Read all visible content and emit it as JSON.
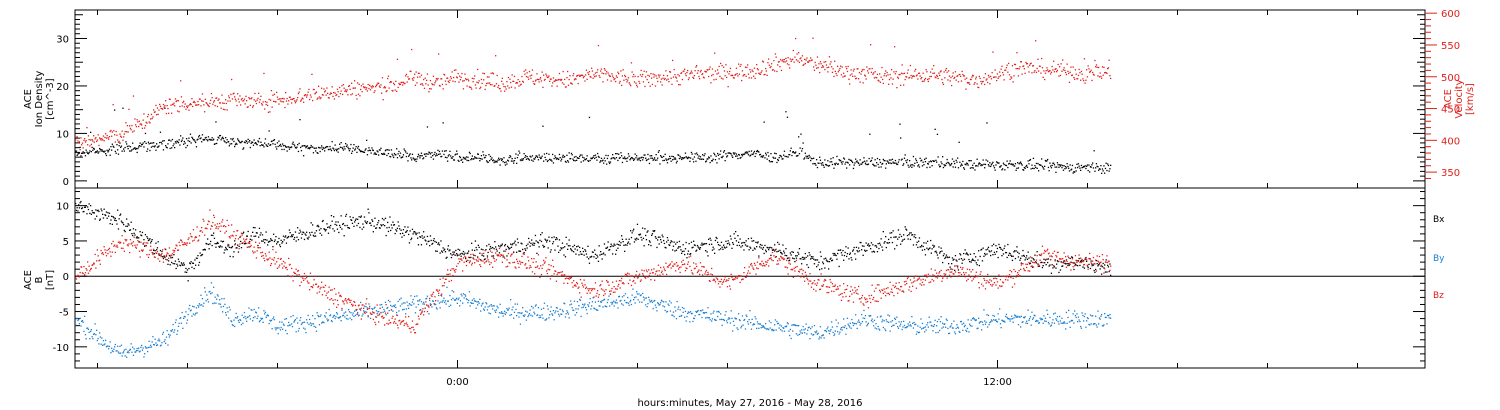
{
  "colors": {
    "black": "#000000",
    "red": "#e0201b",
    "blue": "#1b7fd0"
  },
  "x_axis": {
    "label": "hours:minutes, May 27, 2016 - May 28, 2016",
    "tick_labels": [
      "0:00",
      "12:00"
    ]
  },
  "chart_data": [
    {
      "type": "scatter",
      "panel": "plasma",
      "left_axis_label": [
        "ACE",
        "Ion Density",
        "[cm^-3]"
      ],
      "right_axis_label": [
        "ACE",
        "Velocity",
        "[km/s]"
      ],
      "x_unit": "hours relative to 2016-05-27 00:00 UT",
      "x_range": [
        -8.5,
        21.5
      ],
      "left_ylim": [
        -1.5,
        36
      ],
      "left_ticks": [
        0,
        10,
        20,
        30
      ],
      "right_ylim": [
        325,
        605
      ],
      "right_ticks": [
        350,
        400,
        450,
        500,
        550,
        600
      ],
      "grid": false,
      "series": [
        {
          "name": "Ion Density",
          "color": "black",
          "axis": "left",
          "x": [
            -8.5,
            -7.5,
            -6.5,
            -5.5,
            -4.5,
            -3.5,
            -2.5,
            -1.5,
            -1.0,
            -0.5,
            0.0,
            0.5,
            1.0,
            1.5,
            2.5,
            3.5,
            4.5,
            5.5,
            6.5,
            7.0,
            7.5,
            8.0,
            8.5,
            9.5,
            10.5,
            11.5,
            12.5,
            13.5,
            14.5
          ],
          "values": [
            6,
            7,
            8,
            9,
            8,
            7,
            7,
            6,
            5,
            6,
            5,
            5,
            4.5,
            5,
            5,
            5,
            5,
            5,
            6,
            5,
            6,
            4,
            4,
            4,
            4,
            3.5,
            3.5,
            3,
            3
          ]
        },
        {
          "name": "Velocity",
          "color": "red",
          "axis": "right",
          "x": [
            -8.5,
            -7.5,
            -7.0,
            -6.5,
            -6.0,
            -5.5,
            -5.0,
            -4.5,
            -3.5,
            -2.5,
            -1.5,
            -1.0,
            -0.5,
            0.0,
            0.5,
            1.0,
            1.5,
            2.5,
            3.0,
            3.5,
            4.0,
            4.5,
            5.5,
            6.5,
            7.0,
            7.5,
            8.0,
            8.5,
            9.5,
            10.5,
            11.0,
            11.5,
            12.5,
            13.5,
            14.0,
            14.5
          ],
          "values": [
            395,
            410,
            430,
            455,
            460,
            460,
            465,
            460,
            470,
            480,
            485,
            500,
            490,
            500,
            495,
            490,
            500,
            495,
            505,
            500,
            495,
            500,
            505,
            510,
            520,
            530,
            520,
            510,
            500,
            505,
            500,
            495,
            515,
            510,
            505,
            510
          ]
        }
      ]
    },
    {
      "type": "scatter",
      "panel": "magnetic field",
      "left_axis_label": [
        "ACE",
        "B",
        "[nT]"
      ],
      "legend": [
        "Bx",
        "By",
        "Bz"
      ],
      "legend_position": "right",
      "x_unit": "hours relative to 2016-05-27 00:00 UT",
      "x_range": [
        -8.5,
        21.5
      ],
      "ylim": [
        -13,
        12.5
      ],
      "y_ticks": [
        -10,
        -5,
        0,
        5,
        10
      ],
      "zero_line": true,
      "grid": false,
      "series": [
        {
          "name": "Bx",
          "color": "black",
          "x": [
            -8.5,
            -7.5,
            -6.5,
            -6.0,
            -5.5,
            -5.0,
            -4.5,
            -4.0,
            -3.0,
            -2.0,
            -1.0,
            0.0,
            1.0,
            2.0,
            3.0,
            4.0,
            5.0,
            6.0,
            7.0,
            8.0,
            9.0,
            10.0,
            11.0,
            12.0,
            13.0,
            14.0,
            14.5
          ],
          "values": [
            10,
            8,
            3,
            1,
            5,
            4,
            6,
            5,
            7,
            8,
            6,
            3,
            4,
            5,
            3,
            6,
            4,
            5,
            4,
            2,
            4,
            6,
            2,
            4,
            2,
            2,
            1
          ]
        },
        {
          "name": "By",
          "color": "blue",
          "x": [
            -8.5,
            -7.5,
            -6.5,
            -6.0,
            -5.5,
            -5.0,
            -4.5,
            -4.0,
            -3.0,
            -2.0,
            -1.0,
            0.0,
            1.0,
            2.0,
            3.0,
            4.0,
            5.0,
            6.0,
            7.0,
            8.0,
            9.0,
            10.0,
            11.0,
            12.0,
            13.0,
            14.0,
            14.5
          ],
          "values": [
            -6,
            -11,
            -9,
            -5,
            -2,
            -6,
            -5,
            -7,
            -6,
            -5,
            -4,
            -3,
            -5,
            -5,
            -4,
            -3,
            -5,
            -6,
            -7,
            -8,
            -6,
            -7,
            -7,
            -6,
            -6,
            -6,
            -6
          ]
        },
        {
          "name": "Bz",
          "color": "red",
          "x": [
            -8.5,
            -7.5,
            -6.5,
            -6.0,
            -5.5,
            -5.0,
            -4.5,
            -4.0,
            -3.0,
            -2.0,
            -1.0,
            0.0,
            1.0,
            2.0,
            3.0,
            4.0,
            5.0,
            6.0,
            7.0,
            8.0,
            9.0,
            10.0,
            11.0,
            12.0,
            13.0,
            14.0,
            14.5
          ],
          "values": [
            0,
            5,
            3,
            5,
            8,
            6,
            4,
            2,
            -2,
            -5,
            -7,
            2,
            3,
            1,
            -2,
            0,
            2,
            -1,
            3,
            -1,
            -3,
            -1,
            1,
            -1,
            3,
            2,
            2
          ]
        }
      ]
    }
  ]
}
